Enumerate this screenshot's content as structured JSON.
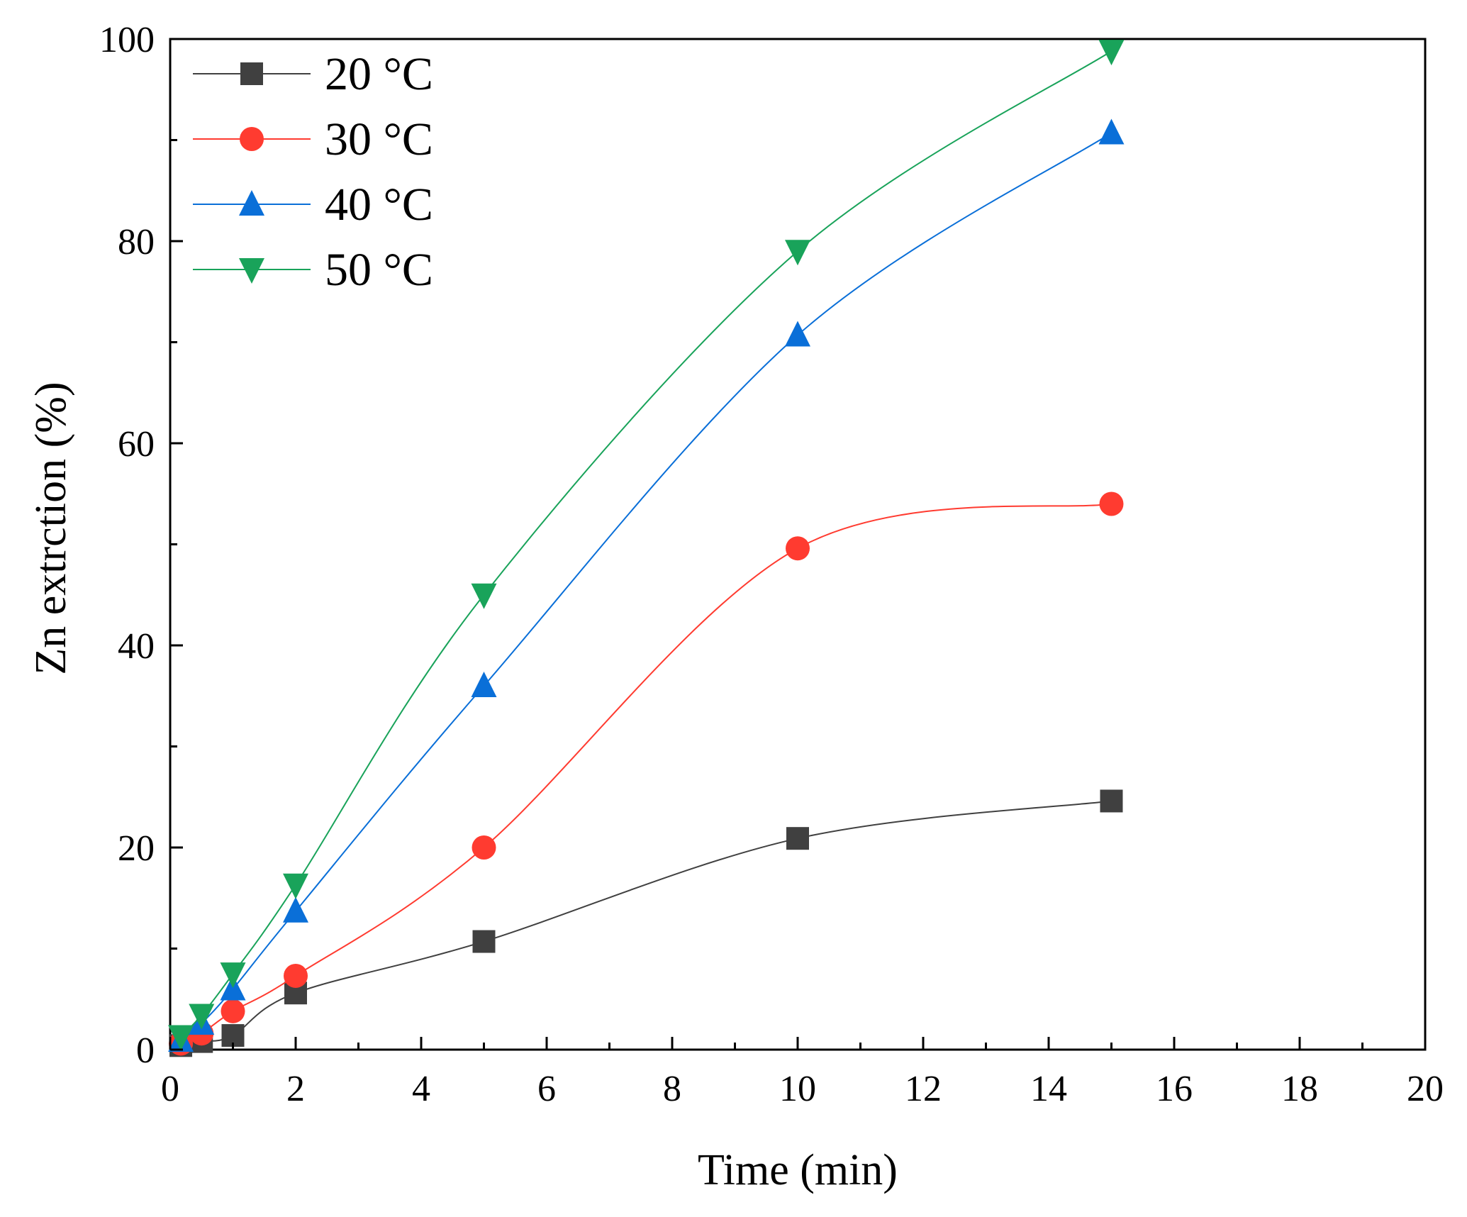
{
  "chart_data": {
    "type": "line",
    "title": "",
    "xlabel": "Time (min)",
    "ylabel": "Zn extrction (%)",
    "xlim": [
      0,
      20
    ],
    "ylim": [
      0,
      100
    ],
    "x_ticks": [
      "0",
      "2",
      "4",
      "6",
      "8",
      "10",
      "12",
      "14",
      "16",
      "18",
      "20"
    ],
    "y_ticks": [
      "0",
      "20",
      "40",
      "60",
      "80",
      "100"
    ],
    "x_tick_values": [
      0,
      2,
      4,
      6,
      8,
      10,
      12,
      14,
      16,
      18,
      20
    ],
    "y_tick_values": [
      0,
      20,
      40,
      60,
      80,
      100
    ],
    "grid": false,
    "legend_position": "top-left",
    "x": [
      0.17,
      0.5,
      1,
      2,
      5,
      10,
      15
    ],
    "series": [
      {
        "name": "20 °C",
        "color": "#404040",
        "marker": "square",
        "values": [
          0.4,
          0.8,
          1.4,
          5.6,
          10.7,
          20.9,
          24.6
        ]
      },
      {
        "name": "30 °C",
        "color": "#ff3b30",
        "marker": "circle",
        "values": [
          0.6,
          1.6,
          3.8,
          7.3,
          20.0,
          49.6,
          54.0
        ]
      },
      {
        "name": "40 °C",
        "color": "#0a6fd8",
        "marker": "triangle-up",
        "values": [
          0.9,
          2.6,
          6.0,
          13.7,
          36.0,
          70.7,
          90.7
        ]
      },
      {
        "name": "50 °C",
        "color": "#19a35a",
        "marker": "triangle-down",
        "values": [
          1.3,
          3.4,
          7.5,
          16.3,
          45.0,
          79.0,
          98.8
        ]
      }
    ]
  }
}
